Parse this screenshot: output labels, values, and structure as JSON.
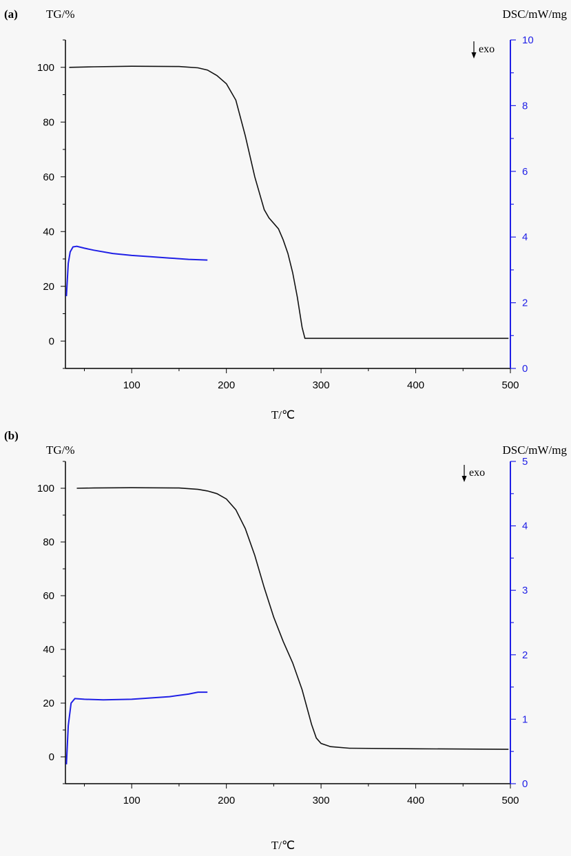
{
  "chart_data": [
    {
      "panel_label": "(a)",
      "type": "line",
      "left_axis_title": "TG/%",
      "right_axis_title": "DSC/mW/mg",
      "x_title": "T/℃",
      "exo_label": "exo",
      "xlim": [
        30,
        500
      ],
      "ylim_left": [
        -10,
        110
      ],
      "ylim_right": [
        0,
        10
      ],
      "x_ticks": [
        100,
        200,
        300,
        400,
        500
      ],
      "y_left_ticks": [
        0,
        20,
        40,
        60,
        80,
        100
      ],
      "y_right_ticks": [
        0,
        2,
        4,
        6,
        8,
        10
      ],
      "grid": false,
      "series": [
        {
          "axis": "left",
          "color": "#111111",
          "x": [
            34,
            60,
            100,
            150,
            170,
            180,
            190,
            200,
            210,
            220,
            230,
            240,
            245,
            250,
            255,
            260,
            265,
            270,
            275,
            280,
            283,
            290,
            350,
            400,
            450,
            498
          ],
          "y": [
            100,
            100.2,
            100.4,
            100.3,
            99.8,
            99,
            97,
            94,
            88,
            75,
            60,
            48,
            45,
            43,
            41,
            37,
            32,
            25,
            16,
            5,
            1,
            1,
            1,
            1,
            1,
            1
          ]
        },
        {
          "axis": "right",
          "color": "#1f1fe6",
          "x": [
            31,
            33,
            35,
            38,
            42,
            50,
            60,
            80,
            100,
            120,
            140,
            160,
            180
          ],
          "y": [
            2.2,
            3.2,
            3.55,
            3.7,
            3.72,
            3.66,
            3.6,
            3.5,
            3.44,
            3.4,
            3.36,
            3.32,
            3.3
          ]
        }
      ]
    },
    {
      "panel_label": "(b)",
      "type": "line",
      "left_axis_title": "TG/%",
      "right_axis_title": "DSC/mW/mg",
      "x_title": "T/℃",
      "exo_label": "exo",
      "xlim": [
        30,
        500
      ],
      "ylim_left": [
        -10,
        110
      ],
      "ylim_right": [
        0,
        5
      ],
      "x_ticks": [
        100,
        200,
        300,
        400,
        500
      ],
      "y_left_ticks": [
        0,
        20,
        40,
        60,
        80,
        100
      ],
      "y_right_ticks": [
        0,
        1,
        2,
        3,
        4,
        5
      ],
      "grid": false,
      "series": [
        {
          "axis": "left",
          "color": "#111111",
          "x": [
            42,
            60,
            100,
            150,
            170,
            180,
            190,
            200,
            210,
            220,
            230,
            240,
            250,
            260,
            270,
            280,
            290,
            295,
            300,
            310,
            330,
            400,
            498
          ],
          "y": [
            100,
            100.1,
            100.2,
            100.1,
            99.6,
            99,
            98,
            96,
            92,
            85,
            75,
            63,
            52,
            43,
            35,
            25,
            12,
            7,
            5,
            3.8,
            3.2,
            3,
            2.8
          ]
        },
        {
          "axis": "right",
          "color": "#1f1fe6",
          "x": [
            31,
            33,
            36,
            40,
            50,
            70,
            100,
            120,
            140,
            160,
            170,
            180
          ],
          "y": [
            0.3,
            0.9,
            1.25,
            1.32,
            1.31,
            1.3,
            1.31,
            1.33,
            1.35,
            1.39,
            1.42,
            1.42
          ]
        }
      ]
    }
  ]
}
